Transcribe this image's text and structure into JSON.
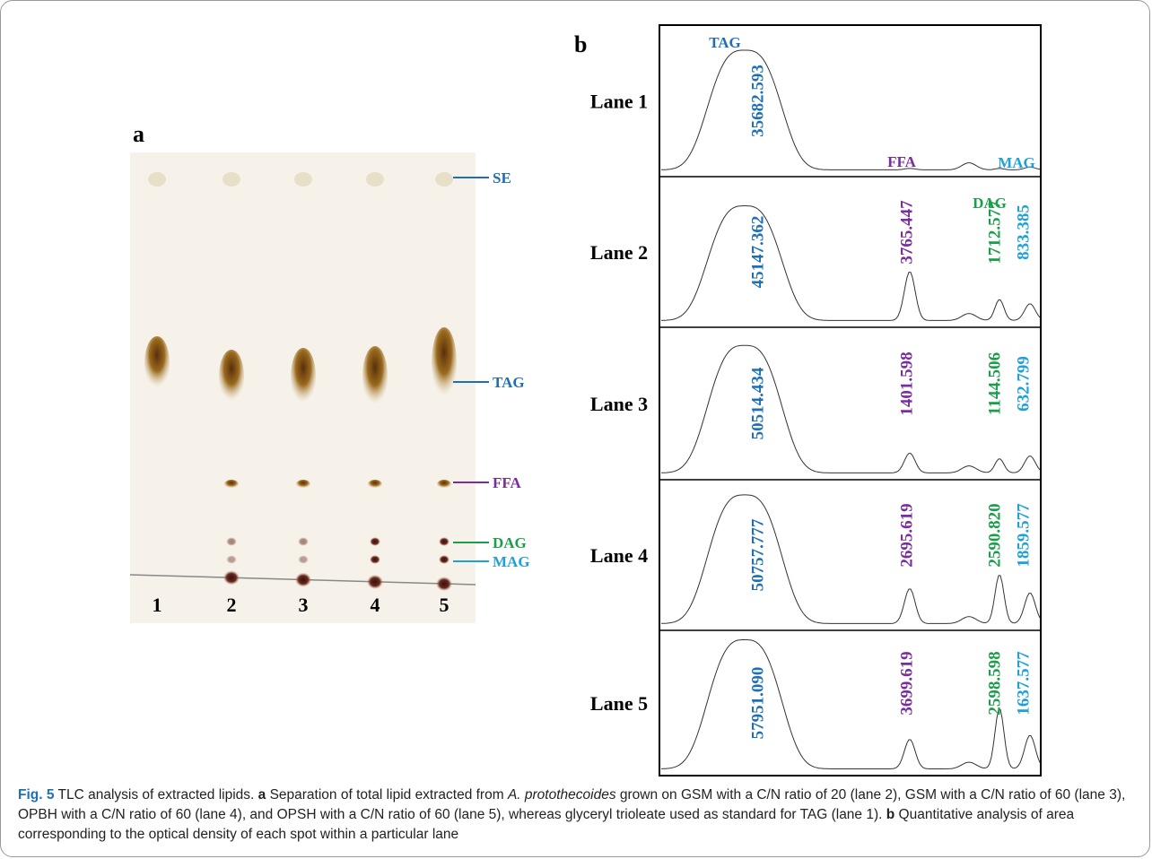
{
  "colors": {
    "SE": "#1f6fb5",
    "TAG": "#1f6fb5",
    "FFA": "#7b2d9b",
    "DAG": "#1a9e4a",
    "MAG": "#1ea0d8"
  },
  "panel_a": {
    "label": "a",
    "lanes": [
      "1",
      "2",
      "3",
      "4",
      "5"
    ],
    "bands": [
      "SE",
      "TAG",
      "FFA",
      "DAG",
      "MAG"
    ]
  },
  "panel_b": {
    "label": "b",
    "peak_labels": [
      "TAG",
      "FFA",
      "MAG",
      "DAG"
    ],
    "lanes": [
      {
        "name": "Lane 1",
        "values": {
          "TAG": "35682.593"
        }
      },
      {
        "name": "Lane 2",
        "values": {
          "TAG": "45147.362",
          "FFA": "3765.447",
          "DAG": "1712.577",
          "MAG": "833.385"
        }
      },
      {
        "name": "Lane 3",
        "values": {
          "TAG": "50514.434",
          "FFA": "1401.598",
          "DAG": "1144.506",
          "MAG": "632.799"
        }
      },
      {
        "name": "Lane 4",
        "values": {
          "TAG": "50757.777",
          "FFA": "2695.619",
          "DAG": "2590.820",
          "MAG": "1859.577"
        }
      },
      {
        "name": "Lane 5",
        "values": {
          "TAG": "57951.090",
          "FFA": "3699.619",
          "DAG": "2598.598",
          "MAG": "1637.577"
        }
      }
    ]
  },
  "caption": [
    {
      "text": "Fig. 5",
      "style": "bold"
    },
    {
      "text": "  TLC analysis of extracted lipids. ",
      "style": "normal"
    },
    {
      "text": "a",
      "style": "bold"
    },
    {
      "text": " Separation of total lipid extracted from ",
      "style": "normal"
    },
    {
      "text": "A. protothecoides",
      "style": "italic"
    },
    {
      "text": " grown on GSM with a C/N ratio of 20 (lane 2), GSM with a C/N ratio of 60 (lane 3), OPBH with a C/N ratio of 60 (lane 4), and OPSH with a C/N ratio of 60 (lane 5), whereas glyceryl trioleate used as standard for TAG (lane 1). ",
      "style": "normal"
    },
    {
      "text": "b",
      "style": "bold"
    },
    {
      "text": " Quantitative analysis of area corresponding to the optical density of each spot within a particular lane",
      "style": "normal"
    }
  ]
}
